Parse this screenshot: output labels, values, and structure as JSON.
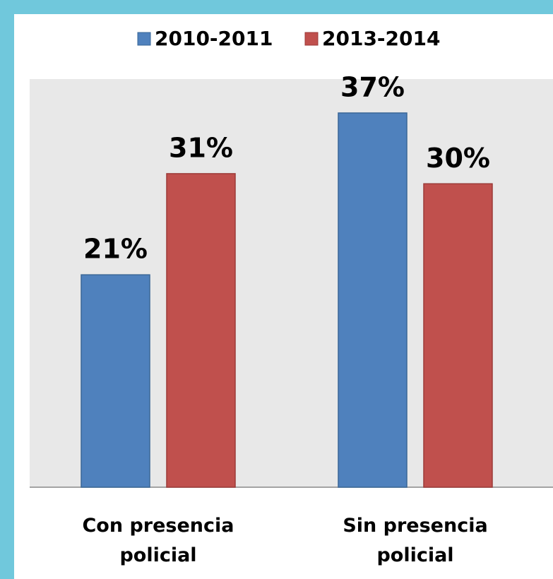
{
  "chart_data": {
    "type": "bar",
    "categories": [
      "Con presencia policial",
      "Sin presencia policial"
    ],
    "series": [
      {
        "name": "2010-2011",
        "color": "#4f81bd",
        "values": [
          21,
          37
        ],
        "value_labels": [
          "21%",
          "37%"
        ]
      },
      {
        "name": "2013-2014",
        "color": "#c0504d",
        "values": [
          31,
          30
        ],
        "value_labels": [
          "31%",
          "30%"
        ]
      }
    ],
    "ylim": [
      0,
      40
    ],
    "legend": "top"
  }
}
